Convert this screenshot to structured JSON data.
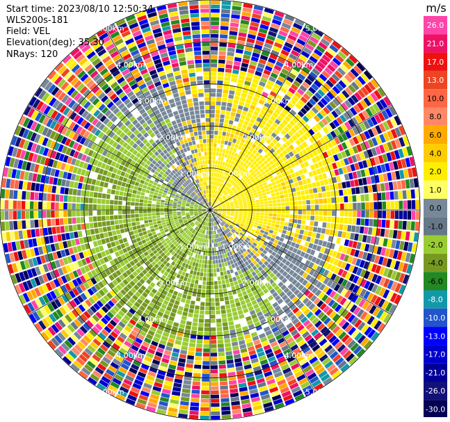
{
  "header": {
    "start_time": "Start time: 2023/08/10 12:50:34",
    "instrument": "WLS200s-181",
    "field": "Field: VEL",
    "elevation": "Elevation(deg): 35.30",
    "nrays": "NRays: 120"
  },
  "colorbar": {
    "unit": "m/s",
    "levels": [
      {
        "label": "26.0",
        "color": "#ff44aa"
      },
      {
        "label": "21.0",
        "color": "#ee1166"
      },
      {
        "label": "17.0",
        "color": "#ee1111"
      },
      {
        "label": "13.0",
        "color": "#ee4422"
      },
      {
        "label": "10.0",
        "color": "#ff6644"
      },
      {
        "label": "8.0",
        "color": "#ff8866"
      },
      {
        "label": "6.0",
        "color": "#ffaa00"
      },
      {
        "label": "4.0",
        "color": "#ffcc00"
      },
      {
        "label": "2.0",
        "color": "#ffee00"
      },
      {
        "label": "1.0",
        "color": "#ffff66"
      },
      {
        "label": "0.0",
        "color": "#778899"
      },
      {
        "label": "-1.0",
        "color": "#667788"
      },
      {
        "label": "-2.0",
        "color": "#99cc33"
      },
      {
        "label": "-4.0",
        "color": "#779922"
      },
      {
        "label": "-6.0",
        "color": "#228822"
      },
      {
        "label": "-8.0",
        "color": "#1199aa"
      },
      {
        "label": "-10.0",
        "color": "#2255cc"
      },
      {
        "label": "-13.0",
        "color": "#0000ff"
      },
      {
        "label": "-17.0",
        "color": "#0000cc"
      },
      {
        "label": "-21.0",
        "color": "#000099"
      },
      {
        "label": "-26.0",
        "color": "#111177"
      },
      {
        "label": "-30.0",
        "color": "#000055"
      }
    ]
  },
  "chart_data": {
    "type": "heatmap",
    "projection": "polar-ppi",
    "field": "VEL",
    "nrays": 120,
    "range_rings": [
      {
        "label": "1.00km"
      },
      {
        "label": "2.00km"
      },
      {
        "label": "3.00km"
      },
      {
        "label": "4.00km"
      },
      {
        "label": "5.00km"
      }
    ],
    "ring_ranges_km": [
      1,
      2,
      3,
      4,
      5
    ],
    "max_range_km": 5.0,
    "spokes_deg": [
      0,
      30,
      60,
      90,
      120,
      150,
      180,
      210,
      240,
      270,
      300,
      330
    ],
    "grid": true,
    "colorbar_position": "right"
  }
}
